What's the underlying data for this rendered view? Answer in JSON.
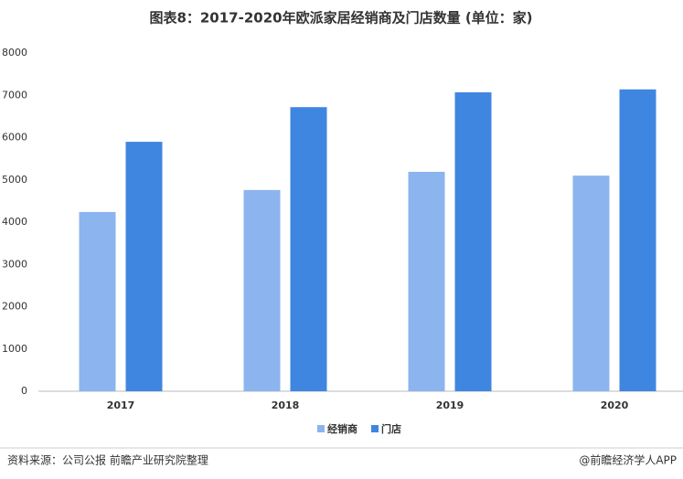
{
  "chart_data": {
    "type": "bar",
    "title": "图表8：2017-2020年欧派家居经销商及门店数量 (单位：家)",
    "categories": [
      "2017",
      "2018",
      "2019",
      "2020"
    ],
    "series": [
      {
        "name": "经销商",
        "color": "#8cb4ee",
        "values": [
          4240,
          4760,
          5190,
          5100
        ]
      },
      {
        "name": "门店",
        "color": "#3f86e0",
        "values": [
          5900,
          6720,
          7070,
          7140
        ]
      }
    ],
    "ylim": [
      0,
      8000
    ],
    "yticks": [
      0,
      1000,
      2000,
      3000,
      4000,
      5000,
      6000,
      7000,
      8000
    ],
    "grid": false,
    "legend": "bottom"
  },
  "source": "资料来源：公司公报 前瞻产业研究院整理",
  "credit": "@前瞻经济学人APP"
}
